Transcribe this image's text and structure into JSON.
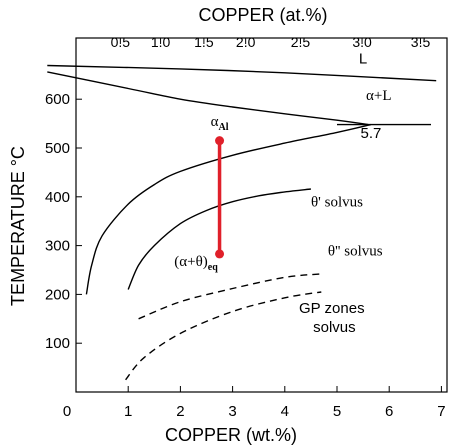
{
  "chart_data": {
    "type": "line",
    "title": "",
    "xlabel": "COPPER (wt.%)",
    "ylabel": "TEMPERATURE °C",
    "x2label": "COPPER (at.%)",
    "xlim": [
      0,
      7
    ],
    "ylim": [
      0,
      700
    ],
    "x_ticks": [
      "0",
      "1",
      "2",
      "3",
      "4",
      "5",
      "6",
      "7"
    ],
    "y_ticks": [
      "100",
      "200",
      "300",
      "400",
      "500",
      "600"
    ],
    "x2_ticks": [
      {
        "at": 0.5,
        "wt": 0.85,
        "label": "0.5"
      },
      {
        "at": 1.0,
        "wt": 1.62,
        "label": "1.0"
      },
      {
        "at": 1.5,
        "wt": 2.45,
        "label": "1.5"
      },
      {
        "at": 2.0,
        "wt": 3.25,
        "label": "2.0"
      },
      {
        "at": 2.5,
        "wt": 4.3,
        "label": "2.5"
      },
      {
        "at": 3.0,
        "wt": 5.48,
        "label": "3.0"
      },
      {
        "at": 3.5,
        "wt": 6.6,
        "label": "3.5"
      }
    ],
    "grid": false,
    "curves": [
      {
        "style": "solid",
        "points": [
          [
            -0.55,
            669
          ],
          [
            2.0,
            662
          ],
          [
            4.0,
            654
          ],
          [
            6.9,
            638
          ]
        ]
      },
      {
        "style": "solid",
        "points": [
          [
            -0.55,
            656
          ],
          [
            1.0,
            622
          ],
          [
            2.0,
            600
          ],
          [
            3.0,
            584
          ],
          [
            4.0,
            570
          ],
          [
            5.0,
            557
          ],
          [
            5.6,
            548
          ]
        ]
      },
      {
        "style": "solid",
        "points": [
          [
            5.0,
            548
          ],
          [
            5.65,
            548
          ],
          [
            6.0,
            548
          ],
          [
            6.8,
            548
          ]
        ]
      },
      {
        "style": "solid",
        "points": [
          [
            0.2,
            200
          ],
          [
            0.3,
            260
          ],
          [
            0.5,
            320
          ],
          [
            1.0,
            385
          ],
          [
            1.5,
            425
          ],
          [
            2.0,
            452
          ],
          [
            3.0,
            485
          ],
          [
            4.0,
            510
          ],
          [
            5.0,
            532
          ],
          [
            5.65,
            548
          ]
        ]
      },
      {
        "style": "solid",
        "points": [
          [
            1.0,
            210
          ],
          [
            1.2,
            260
          ],
          [
            1.5,
            300
          ],
          [
            2.0,
            345
          ],
          [
            2.5,
            372
          ],
          [
            3.0,
            390
          ],
          [
            3.5,
            402
          ],
          [
            4.0,
            410
          ],
          [
            4.5,
            416
          ]
        ]
      },
      {
        "style": "dashed",
        "points": [
          [
            1.2,
            150
          ],
          [
            2.0,
            185
          ],
          [
            3.0,
            212
          ],
          [
            4.0,
            235
          ],
          [
            4.7,
            242
          ]
        ]
      },
      {
        "style": "dashed",
        "points": [
          [
            0.95,
            25
          ],
          [
            1.3,
            70
          ],
          [
            2.0,
            120
          ],
          [
            3.0,
            165
          ],
          [
            4.0,
            193
          ],
          [
            4.7,
            205
          ]
        ]
      }
    ],
    "marker_path": {
      "color": "#e0202a",
      "x": 2.75,
      "top": 515,
      "bottom": 283
    },
    "annotations": [
      {
        "text": "L",
        "x": 5.5,
        "y": 673
      },
      {
        "text": "α+L",
        "x": 5.8,
        "y": 598
      },
      {
        "text": "5.7",
        "x": 5.65,
        "y": 520
      },
      {
        "text": "α",
        "sub": "Al",
        "x": 2.75,
        "y": 545
      },
      {
        "text": "θ' solvus",
        "x": 5.0,
        "y": 380
      },
      {
        "text": "θ'' solvus",
        "x": 5.35,
        "y": 280
      },
      {
        "text": "(α+θ)",
        "sub": "eq",
        "x": 2.3,
        "y": 258
      },
      {
        "text": "GP zones",
        "x": 4.9,
        "y": 162
      },
      {
        "text": "solvus",
        "x": 4.95,
        "y": 123
      }
    ]
  }
}
